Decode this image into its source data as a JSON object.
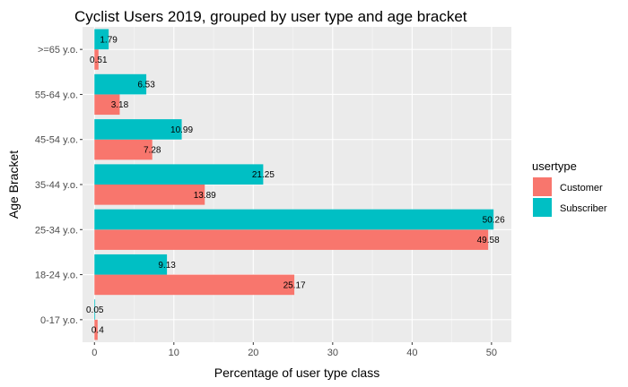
{
  "chart_data": {
    "type": "bar",
    "orientation": "horizontal",
    "title": "Cyclist Users 2019, grouped by user type and age bracket",
    "xlabel": "Percentage of user type class",
    "ylabel": "Age Bracket",
    "categories": [
      "0-17 y.o.",
      "18-24 y.o.",
      "25-34 y.o.",
      "35-44 y.o.",
      "45-54 y.o.",
      "55-64 y.o.",
      ">=65 y.o."
    ],
    "series": [
      {
        "name": "Customer",
        "color": "#F8766D",
        "values": [
          0.4,
          25.17,
          49.58,
          13.89,
          7.28,
          3.18,
          0.51
        ]
      },
      {
        "name": "Subscriber",
        "color": "#00BFC4",
        "values": [
          0.05,
          9.13,
          50.26,
          21.25,
          10.99,
          6.53,
          1.79
        ]
      }
    ],
    "value_labels": {
      "Customer": [
        "0.4",
        "25.17",
        "49.58",
        "13.89",
        "7.28",
        "3.18",
        "0.51"
      ],
      "Subscriber": [
        "0.05",
        "9.13",
        "50.26",
        "21.25",
        "10.99",
        "6.53",
        "1.79"
      ]
    },
    "xlim": [
      -1.5,
      52.5
    ],
    "xticks": [
      0,
      10,
      20,
      30,
      40,
      50
    ],
    "xtick_labels": [
      "0",
      "10",
      "20",
      "30",
      "40",
      "50"
    ],
    "grid": true,
    "panel_color": "#EBEBEB",
    "legend": {
      "title": "usertype",
      "position": "right"
    }
  }
}
